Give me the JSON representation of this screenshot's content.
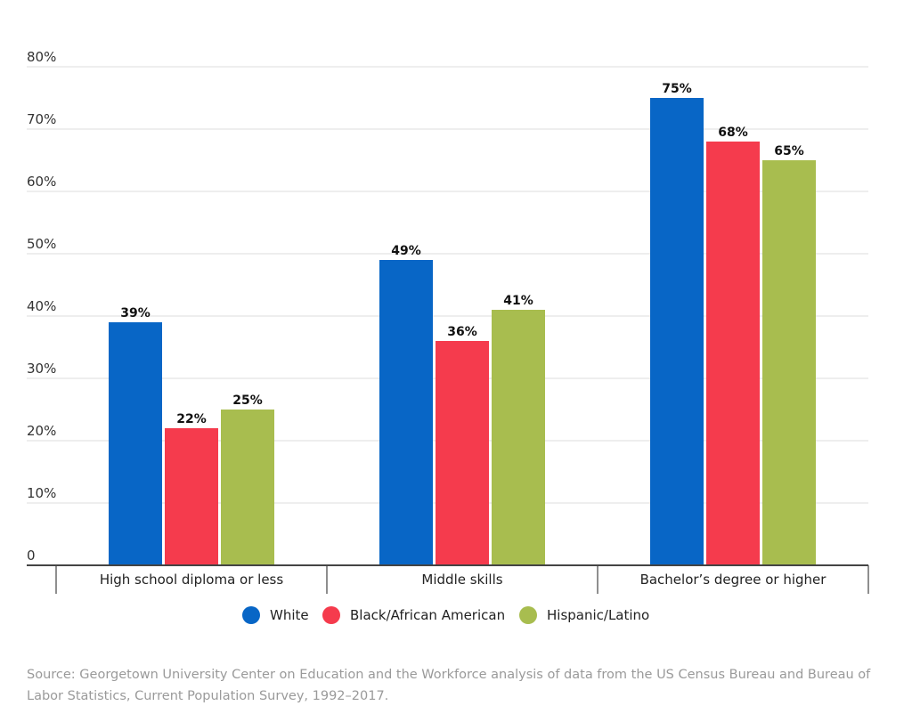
{
  "chart_data": {
    "type": "bar",
    "title": "",
    "xlabel": "",
    "ylabel": "",
    "categories": [
      "High school diploma or less",
      "Middle skills",
      "Bachelor’s degree or higher"
    ],
    "series": [
      {
        "name": "White",
        "color": "#0866c6",
        "values": [
          39,
          49,
          75
        ],
        "labels": [
          "39%",
          "49%",
          "75%"
        ]
      },
      {
        "name": "Black/African American",
        "color": "#f53b4d",
        "values": [
          22,
          36,
          68
        ],
        "labels": [
          "22%",
          "36%",
          "68%"
        ]
      },
      {
        "name": "Hispanic/Latino",
        "color": "#a8bd4f",
        "values": [
          25,
          41,
          65
        ],
        "labels": [
          "25%",
          "41%",
          "65%"
        ]
      }
    ],
    "ylim": [
      0,
      80
    ],
    "yticks": [
      0,
      10,
      20,
      30,
      40,
      50,
      60,
      70,
      80
    ],
    "ytick_labels": [
      "0",
      "10%",
      "20%",
      "30%",
      "40%",
      "50%",
      "60%",
      "70%",
      "80%"
    ],
    "grid": true,
    "legend_position": "bottom-center"
  },
  "source_text": "Source: Georgetown University Center on Education and the Workforce analysis of data from the US Census Bureau and Bureau of Labor Statistics, Current Population Survey, 1992–2017."
}
